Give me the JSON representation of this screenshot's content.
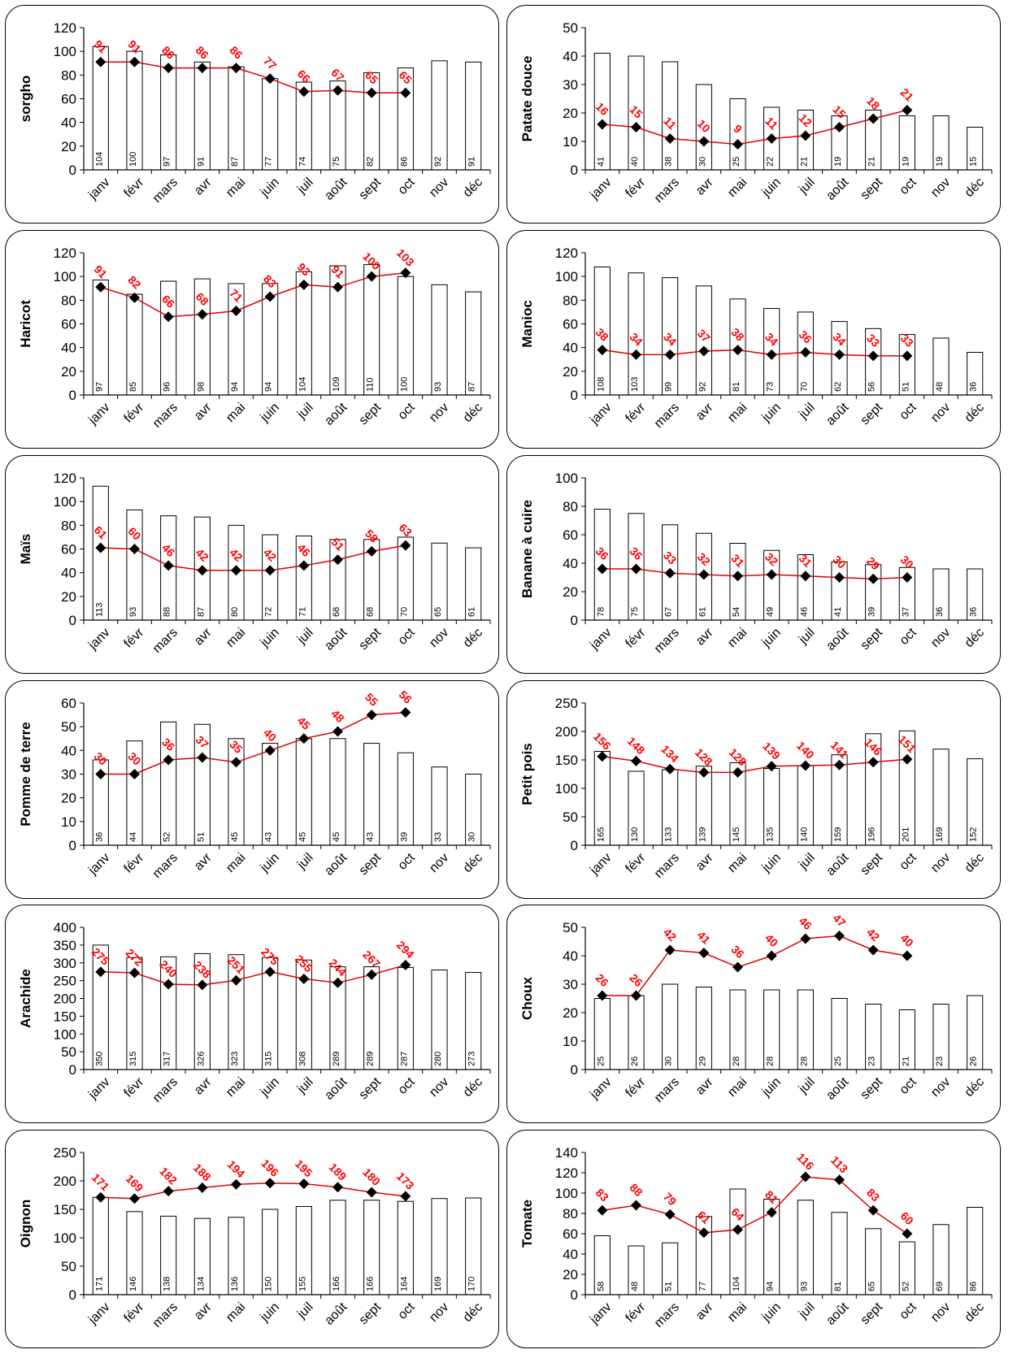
{
  "months": [
    "janv",
    "févr",
    "mars",
    "avr",
    "mai",
    "juin",
    "juil",
    "août",
    "sept",
    "oct",
    "nov",
    "déc"
  ],
  "colors": {
    "bars_fill": "#ffffff",
    "bars_stroke": "#000000",
    "line": "#e00000",
    "marker": "#000000",
    "line_label": "#ff0000"
  },
  "chart_data": [
    {
      "type": "bar+line",
      "ylabel": "sorgho",
      "ylim": [
        0,
        120
      ],
      "yticks": [
        0,
        20,
        40,
        60,
        80,
        100,
        120
      ],
      "bars": [
        104,
        100,
        97,
        91,
        87,
        77,
        74,
        75,
        82,
        86,
        92,
        91
      ],
      "line": [
        91,
        91,
        86,
        86,
        86,
        77,
        66,
        67,
        65,
        65
      ]
    },
    {
      "type": "bar+line",
      "ylabel": "Patate douce",
      "ylim": [
        0,
        50
      ],
      "yticks": [
        0,
        10,
        20,
        30,
        40,
        50
      ],
      "bars": [
        41,
        40,
        38,
        30,
        25,
        22,
        21,
        19,
        21,
        19,
        19,
        15
      ],
      "line": [
        16,
        15,
        11,
        10,
        9,
        11,
        12,
        15,
        18,
        21
      ]
    },
    {
      "type": "bar+line",
      "ylabel": "Haricot",
      "ylim": [
        0,
        120
      ],
      "yticks": [
        0,
        20,
        40,
        60,
        80,
        100,
        120
      ],
      "bars": [
        97,
        85,
        96,
        98,
        94,
        94,
        104,
        109,
        110,
        100,
        93,
        87
      ],
      "line": [
        91,
        82,
        66,
        68,
        71,
        83,
        93,
        91,
        100,
        103
      ]
    },
    {
      "type": "bar+line",
      "ylabel": "Manioc",
      "ylim": [
        0,
        120
      ],
      "yticks": [
        0,
        20,
        40,
        60,
        80,
        100,
        120
      ],
      "bars": [
        108,
        103,
        99,
        92,
        81,
        73,
        70,
        62,
        56,
        51,
        48,
        36
      ],
      "line": [
        38,
        34,
        34,
        37,
        38,
        34,
        36,
        34,
        33,
        33
      ]
    },
    {
      "type": "bar+line",
      "ylabel": "Maïs",
      "ylim": [
        0,
        120
      ],
      "yticks": [
        0,
        20,
        40,
        60,
        80,
        100,
        120
      ],
      "bars": [
        113,
        93,
        88,
        87,
        80,
        72,
        71,
        68,
        68,
        70,
        65,
        61
      ],
      "line": [
        61,
        60,
        46,
        42,
        42,
        42,
        46,
        51,
        58,
        63
      ]
    },
    {
      "type": "bar+line",
      "ylabel": "Banane à cuire",
      "ylim": [
        0,
        100
      ],
      "yticks": [
        0,
        20,
        40,
        60,
        80,
        100
      ],
      "bars": [
        78,
        75,
        67,
        61,
        54,
        49,
        46,
        41,
        39,
        37,
        36,
        36
      ],
      "line": [
        36,
        36,
        33,
        32,
        31,
        32,
        31,
        30,
        29,
        30
      ]
    },
    {
      "type": "bar+line",
      "ylabel": "Pomme de terre",
      "ylim": [
        0,
        60
      ],
      "yticks": [
        0,
        10,
        20,
        30,
        40,
        50,
        60
      ],
      "bars": [
        36,
        44,
        52,
        51,
        45,
        43,
        45,
        45,
        43,
        39,
        33,
        30
      ],
      "line": [
        30,
        30,
        36,
        37,
        35,
        40,
        45,
        48,
        55,
        56
      ]
    },
    {
      "type": "bar+line",
      "ylabel": "Petit pois",
      "ylim": [
        0,
        250
      ],
      "yticks": [
        0,
        50,
        100,
        150,
        200,
        250
      ],
      "bars": [
        165,
        130,
        133,
        139,
        145,
        135,
        140,
        159,
        196,
        201,
        169,
        152
      ],
      "line": [
        156,
        148,
        134,
        128,
        128,
        139,
        140,
        141,
        146,
        151
      ]
    },
    {
      "type": "bar+line",
      "ylabel": "Arachide",
      "ylim": [
        0,
        400
      ],
      "yticks": [
        0,
        50,
        100,
        150,
        200,
        250,
        300,
        350,
        400
      ],
      "bars": [
        350,
        315,
        317,
        326,
        323,
        315,
        308,
        289,
        289,
        287,
        280,
        273
      ],
      "line": [
        275,
        272,
        240,
        238,
        251,
        275,
        255,
        244,
        267,
        294
      ]
    },
    {
      "type": "bar+line",
      "ylabel": "Choux",
      "ylim": [
        0,
        50
      ],
      "yticks": [
        0,
        10,
        20,
        30,
        40,
        50
      ],
      "bars": [
        25,
        26,
        30,
        29,
        28,
        28,
        28,
        25,
        23,
        21,
        23,
        26
      ],
      "line": [
        26,
        26,
        42,
        41,
        36,
        40,
        46,
        47,
        42,
        40
      ]
    },
    {
      "type": "bar+line",
      "ylabel": "Oignon",
      "ylim": [
        0,
        250
      ],
      "yticks": [
        0,
        50,
        100,
        150,
        200,
        250
      ],
      "bars": [
        171,
        146,
        138,
        134,
        136,
        150,
        155,
        166,
        166,
        164,
        169,
        170
      ],
      "line": [
        171,
        169,
        182,
        188,
        194,
        196,
        195,
        189,
        180,
        173
      ]
    },
    {
      "type": "bar+line",
      "ylabel": "Tomate",
      "ylim": [
        0,
        140
      ],
      "yticks": [
        0,
        20,
        40,
        60,
        80,
        100,
        120,
        140
      ],
      "bars": [
        58,
        48,
        51,
        77,
        104,
        94,
        93,
        81,
        65,
        52,
        69,
        86
      ],
      "line": [
        83,
        88,
        79,
        61,
        64,
        81,
        116,
        113,
        83,
        60
      ]
    }
  ]
}
